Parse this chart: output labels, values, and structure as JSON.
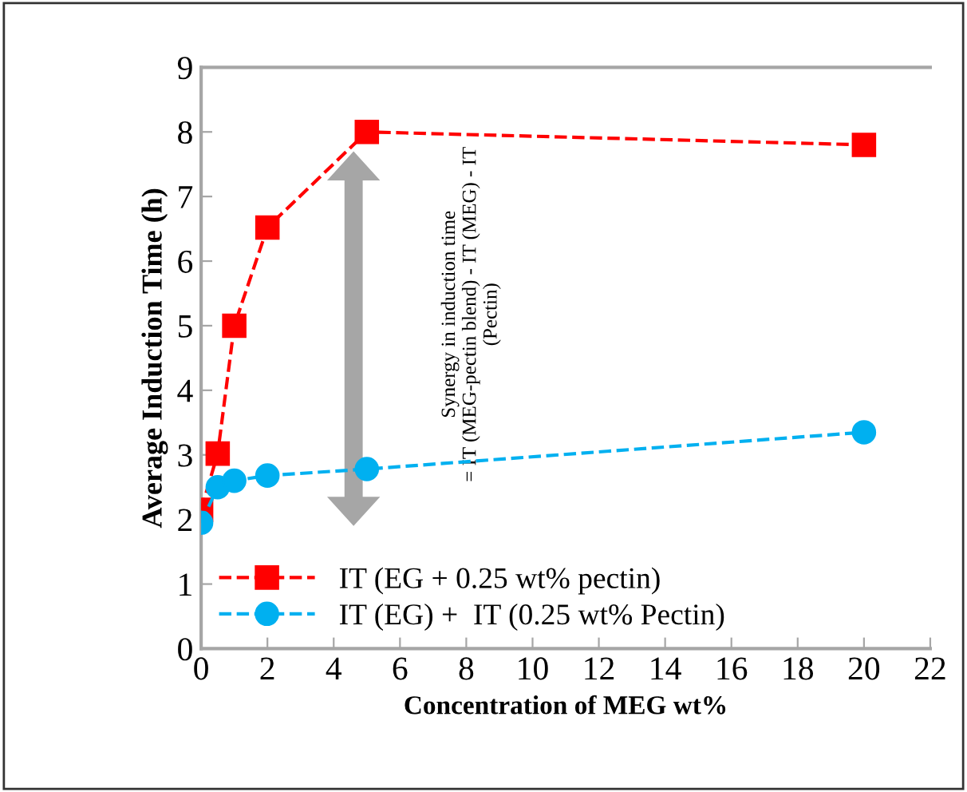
{
  "chart_data": {
    "type": "line",
    "xlabel": "Concentration of MEG wt%",
    "ylabel": "Average Induction Time (h)",
    "xlim": [
      0,
      22
    ],
    "xticks": [
      0,
      2,
      4,
      6,
      8,
      10,
      12,
      14,
      16,
      18,
      20,
      22
    ],
    "ylim": [
      0,
      9
    ],
    "yticks": [
      0,
      1,
      2,
      3,
      4,
      5,
      6,
      7,
      8,
      9
    ],
    "grid": false,
    "legend": "bottom left",
    "line_style": "dashed",
    "series": [
      {
        "name": "IT (EG + 0.25 wt% pectin)",
        "color": "#ff0000",
        "marker": "square",
        "x": [
          0,
          0.5,
          1,
          2,
          5,
          20
        ],
        "values": [
          2.15,
          3.02,
          5.0,
          6.52,
          8.0,
          7.8
        ]
      },
      {
        "name": "IT (EG) +  IT (0.25 wt% Pectin)",
        "color": "#00b0f0",
        "marker": "circle",
        "x": [
          0,
          0.5,
          1,
          2,
          5,
          20
        ],
        "values": [
          1.95,
          2.5,
          2.6,
          2.68,
          2.78,
          3.35
        ]
      }
    ],
    "annotations": [
      "Synergy in induction time\n= IT (MEG-pectin blend) - IT (MEG) - IT\n(Pectin)"
    ]
  }
}
